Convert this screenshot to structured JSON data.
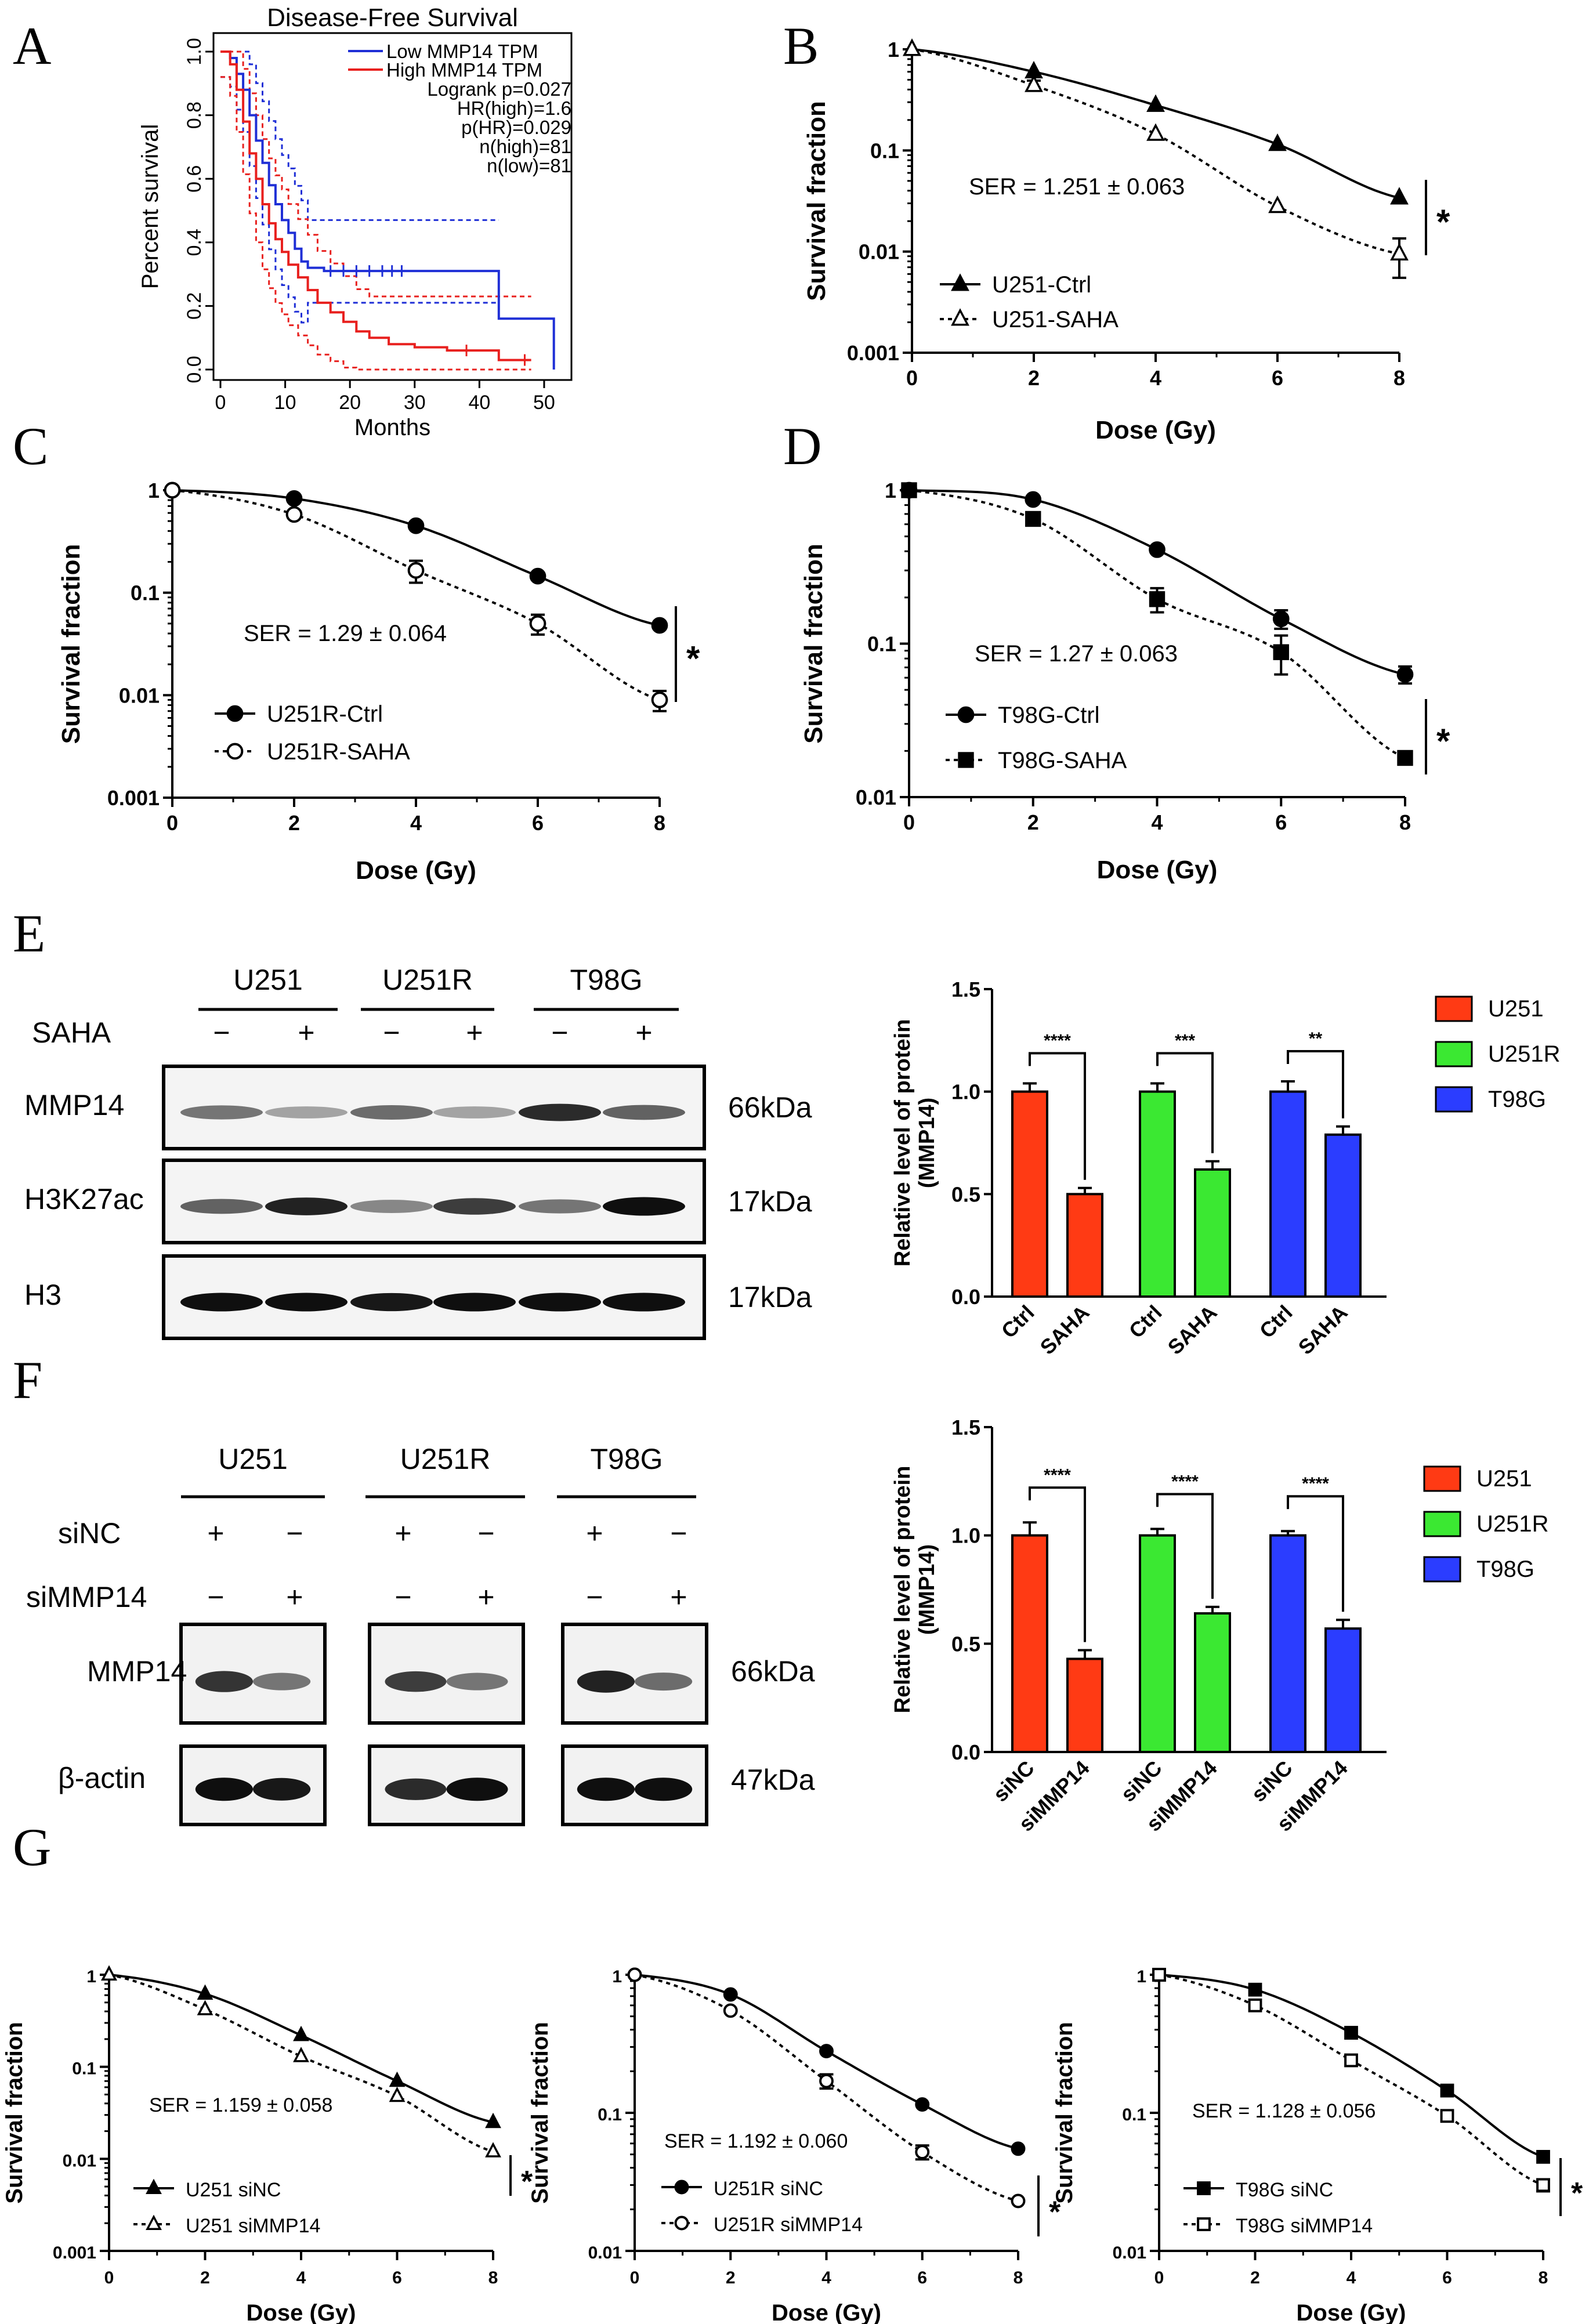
{
  "panel_labels": [
    "A",
    "B",
    "C",
    "D",
    "E",
    "F",
    "G"
  ],
  "panelA": {
    "title": "Disease-Free Survival",
    "ylabel": "Percent survival",
    "xlabel": "Months",
    "yticks": [
      "0.0",
      "0.2",
      "0.4",
      "0.6",
      "0.8",
      "1.0"
    ],
    "xticks": [
      "0",
      "10",
      "20",
      "30",
      "40",
      "50"
    ],
    "legend": [
      "Low MMP14 TPM",
      "High MMP14 TPM"
    ],
    "stats": [
      "Logrank p=0.027",
      "HR(high)=1.6",
      "p(HR)=0.029",
      "n(high)=81",
      "n(low)=81"
    ],
    "colors": {
      "low": "#1f2fd6",
      "high": "#e8201e"
    },
    "low_curve": [
      [
        0,
        1
      ],
      [
        1.5,
        0.98
      ],
      [
        2.5,
        0.93
      ],
      [
        3.5,
        0.88
      ],
      [
        4.5,
        0.8
      ],
      [
        5.5,
        0.72
      ],
      [
        6.5,
        0.65
      ],
      [
        7.5,
        0.58
      ],
      [
        8.5,
        0.52
      ],
      [
        9.5,
        0.47
      ],
      [
        10.5,
        0.43
      ],
      [
        11.5,
        0.38
      ],
      [
        12.5,
        0.34
      ],
      [
        13.5,
        0.32
      ],
      [
        16,
        0.31
      ],
      [
        25,
        0.31
      ],
      [
        43,
        0.31
      ],
      [
        43,
        0.16
      ],
      [
        51.5,
        0.16
      ],
      [
        51.5,
        0
      ]
    ],
    "high_curve": [
      [
        0,
        1
      ],
      [
        1.5,
        0.96
      ],
      [
        2.5,
        0.88
      ],
      [
        3.5,
        0.78
      ],
      [
        4.5,
        0.68
      ],
      [
        5.5,
        0.6
      ],
      [
        6.5,
        0.52
      ],
      [
        7.5,
        0.46
      ],
      [
        8.5,
        0.41
      ],
      [
        9.5,
        0.37
      ],
      [
        10.5,
        0.33
      ],
      [
        12,
        0.29
      ],
      [
        13.5,
        0.25
      ],
      [
        15,
        0.21
      ],
      [
        17,
        0.18
      ],
      [
        19,
        0.15
      ],
      [
        21,
        0.12
      ],
      [
        23,
        0.1
      ],
      [
        26,
        0.08
      ],
      [
        30,
        0.07
      ],
      [
        35,
        0.06
      ],
      [
        42,
        0.06
      ],
      [
        43,
        0.03
      ],
      [
        48,
        0.03
      ]
    ]
  },
  "common": {
    "ylabel": "Survival fraction",
    "xlabel": "Dose (Gy)",
    "xticks": [
      "0",
      "2",
      "4",
      "6",
      "8"
    ],
    "sig": "*"
  },
  "chart_data": [
    {
      "id": "B",
      "type": "line",
      "ylog": true,
      "ylim": [
        0.001,
        1
      ],
      "yticks": [
        "0.001",
        "0.01",
        "0.1",
        "1"
      ],
      "x": [
        0,
        2,
        4,
        6,
        8
      ],
      "ser": "SER = 1.251 ± 0.063",
      "series": [
        {
          "name": "U251-Ctrl",
          "values": [
            1,
            0.6,
            0.28,
            0.115,
            0.034
          ],
          "err": [
            0,
            0,
            0,
            0,
            0
          ],
          "marker": "tri-filled"
        },
        {
          "name": "U251-SAHA",
          "values": [
            1,
            0.44,
            0.145,
            0.028,
            0.0095
          ],
          "err": [
            0,
            0.05,
            0,
            0,
            0.004
          ],
          "marker": "tri-open"
        }
      ]
    },
    {
      "id": "C",
      "type": "line",
      "ylog": true,
      "ylim": [
        0.001,
        1
      ],
      "yticks": [
        "0.001",
        "0.01",
        "0.1",
        "1"
      ],
      "x": [
        0,
        2,
        4,
        6,
        8
      ],
      "ser": "SER = 1.29 ± 0.064",
      "series": [
        {
          "name": "U251R-Ctrl",
          "values": [
            1,
            0.83,
            0.45,
            0.145,
            0.048
          ],
          "err": [
            0,
            0,
            0,
            0,
            0
          ],
          "marker": "circle-filled"
        },
        {
          "name": "U251R-SAHA",
          "values": [
            1,
            0.58,
            0.165,
            0.05,
            0.009
          ],
          "err": [
            0,
            0,
            0.04,
            0.011,
            0.002
          ],
          "marker": "circle-open"
        }
      ]
    },
    {
      "id": "D",
      "type": "line",
      "ylog": true,
      "ylim": [
        0.01,
        1
      ],
      "yticks": [
        "0.01",
        "0.1",
        "1"
      ],
      "x": [
        0,
        2,
        4,
        6,
        8
      ],
      "ser": "SER = 1.27 ± 0.063",
      "series": [
        {
          "name": "T98G-Ctrl",
          "values": [
            1,
            0.87,
            0.41,
            0.145,
            0.063
          ],
          "err": [
            0,
            0,
            0,
            0.02,
            0.008
          ],
          "marker": "circle-filled"
        },
        {
          "name": "T98G-SAHA",
          "values": [
            1,
            0.65,
            0.195,
            0.088,
            0.018
          ],
          "err": [
            0,
            0,
            0.035,
            0.025,
            0
          ],
          "marker": "square-filled"
        }
      ]
    },
    {
      "id": "E",
      "type": "bar",
      "ylim": [
        0,
        1.5
      ],
      "yticks": [
        "0.0",
        "0.5",
        "1.0",
        "1.5"
      ],
      "ylabel": "Relative level of  protein (MMP14)",
      "categories": [
        "Ctrl",
        "SAHA",
        "Ctrl",
        "SAHA",
        "Ctrl",
        "SAHA"
      ],
      "values": [
        1.0,
        0.5,
        1.0,
        0.62,
        1.0,
        0.79
      ],
      "err": [
        0.04,
        0.03,
        0.04,
        0.04,
        0.05,
        0.04
      ],
      "groups": [
        {
          "name": "U251",
          "color": "#ff3a14",
          "sig": "****"
        },
        {
          "name": "U251R",
          "color": "#3be832",
          "sig": "***"
        },
        {
          "name": "T98G",
          "color": "#2b3dff",
          "sig": "**"
        }
      ]
    },
    {
      "id": "F",
      "type": "bar",
      "ylim": [
        0,
        1.5
      ],
      "yticks": [
        "0.0",
        "0.5",
        "1.0",
        "1.5"
      ],
      "ylabel": "Relative level of  protein (MMP14)",
      "categories": [
        "siNC",
        "siMMP14",
        "siNC",
        "siMMP14",
        "siNC",
        "siMMP14"
      ],
      "values": [
        1.0,
        0.43,
        1.0,
        0.64,
        1.0,
        0.57
      ],
      "err": [
        0.06,
        0.04,
        0.03,
        0.03,
        0.02,
        0.04
      ],
      "groups": [
        {
          "name": "U251",
          "color": "#ff3a14",
          "sig": "****"
        },
        {
          "name": "U251R",
          "color": "#3be832",
          "sig": "****"
        },
        {
          "name": "T98G",
          "color": "#2b3dff",
          "sig": "****"
        }
      ]
    },
    {
      "id": "G1",
      "type": "line",
      "ylog": true,
      "ylim": [
        0.001,
        1
      ],
      "yticks": [
        "0.001",
        "0.01",
        "0.1",
        "1"
      ],
      "x": [
        0,
        2,
        4,
        6,
        8
      ],
      "ser": "SER = 1.159 ± 0.058",
      "series": [
        {
          "name": "U251 siNC",
          "values": [
            1,
            0.62,
            0.22,
            0.07,
            0.025
          ],
          "err": [
            0,
            0,
            0,
            0,
            0
          ],
          "marker": "tri-filled"
        },
        {
          "name": "U251 siMMP14",
          "values": [
            1,
            0.42,
            0.13,
            0.048,
            0.012
          ],
          "err": [
            0,
            0,
            0,
            0,
            0
          ],
          "marker": "tri-open"
        }
      ]
    },
    {
      "id": "G2",
      "type": "line",
      "ylog": true,
      "ylim": [
        0.01,
        1
      ],
      "yticks": [
        "0.01",
        "0.1",
        "1"
      ],
      "x": [
        0,
        2,
        4,
        6,
        8
      ],
      "ser": "SER = 1.192 ± 0.060",
      "series": [
        {
          "name": "U251R siNC",
          "values": [
            1,
            0.72,
            0.28,
            0.115,
            0.055
          ],
          "err": [
            0,
            0,
            0,
            0,
            0
          ],
          "marker": "circle-filled"
        },
        {
          "name": "U251R siMMP14",
          "values": [
            1,
            0.55,
            0.17,
            0.052,
            0.023
          ],
          "err": [
            0,
            0,
            0.02,
            0.006,
            0
          ],
          "marker": "circle-open"
        }
      ]
    },
    {
      "id": "G3",
      "type": "line",
      "ylog": true,
      "ylim": [
        0.01,
        1
      ],
      "yticks": [
        "0.01",
        "0.1",
        "1"
      ],
      "x": [
        0,
        2,
        4,
        6,
        8
      ],
      "ser": "SER = 1.128 ± 0.056",
      "series": [
        {
          "name": "T98G siNC",
          "values": [
            1,
            0.78,
            0.38,
            0.145,
            0.048
          ],
          "err": [
            0,
            0,
            0,
            0,
            0
          ],
          "marker": "square-filled"
        },
        {
          "name": "T98G siMMP14",
          "values": [
            1,
            0.6,
            0.24,
            0.095,
            0.03
          ],
          "err": [
            0,
            0,
            0,
            0,
            0.003
          ],
          "marker": "square-open"
        }
      ]
    }
  ],
  "westernE": {
    "cells": [
      "U251",
      "U251R",
      "T98G"
    ],
    "treat_label": "SAHA",
    "signs": [
      "−",
      "+",
      "−",
      "+",
      "−",
      "+"
    ],
    "rows": [
      {
        "label": "MMP14",
        "kda": "66kDa",
        "intensity": [
          0.45,
          0.2,
          0.5,
          0.2,
          0.85,
          0.55
        ]
      },
      {
        "label": "H3K27ac",
        "kda": "17kDa",
        "intensity": [
          0.55,
          0.9,
          0.35,
          0.75,
          0.45,
          1.0
        ]
      },
      {
        "label": "H3",
        "kda": "17kDa",
        "intensity": [
          1,
          1,
          0.95,
          1,
          1,
          1
        ]
      }
    ]
  },
  "westernF": {
    "cells": [
      "U251",
      "U251R",
      "T98G"
    ],
    "row1_label": "siNC",
    "row2_label": "siMMP14",
    "row1_signs": [
      "+",
      "−",
      "+",
      "−",
      "+",
      "−"
    ],
    "row2_signs": [
      "−",
      "+",
      "−",
      "+",
      "−",
      "+"
    ],
    "rows": [
      {
        "label": "MMP14",
        "kda": "66kDa",
        "intensity": [
          0.8,
          0.45,
          0.75,
          0.45,
          0.9,
          0.5
        ]
      },
      {
        "label": "β-actin",
        "kda": "47kDa",
        "intensity": [
          1,
          0.95,
          0.85,
          1,
          1,
          1
        ]
      }
    ]
  }
}
